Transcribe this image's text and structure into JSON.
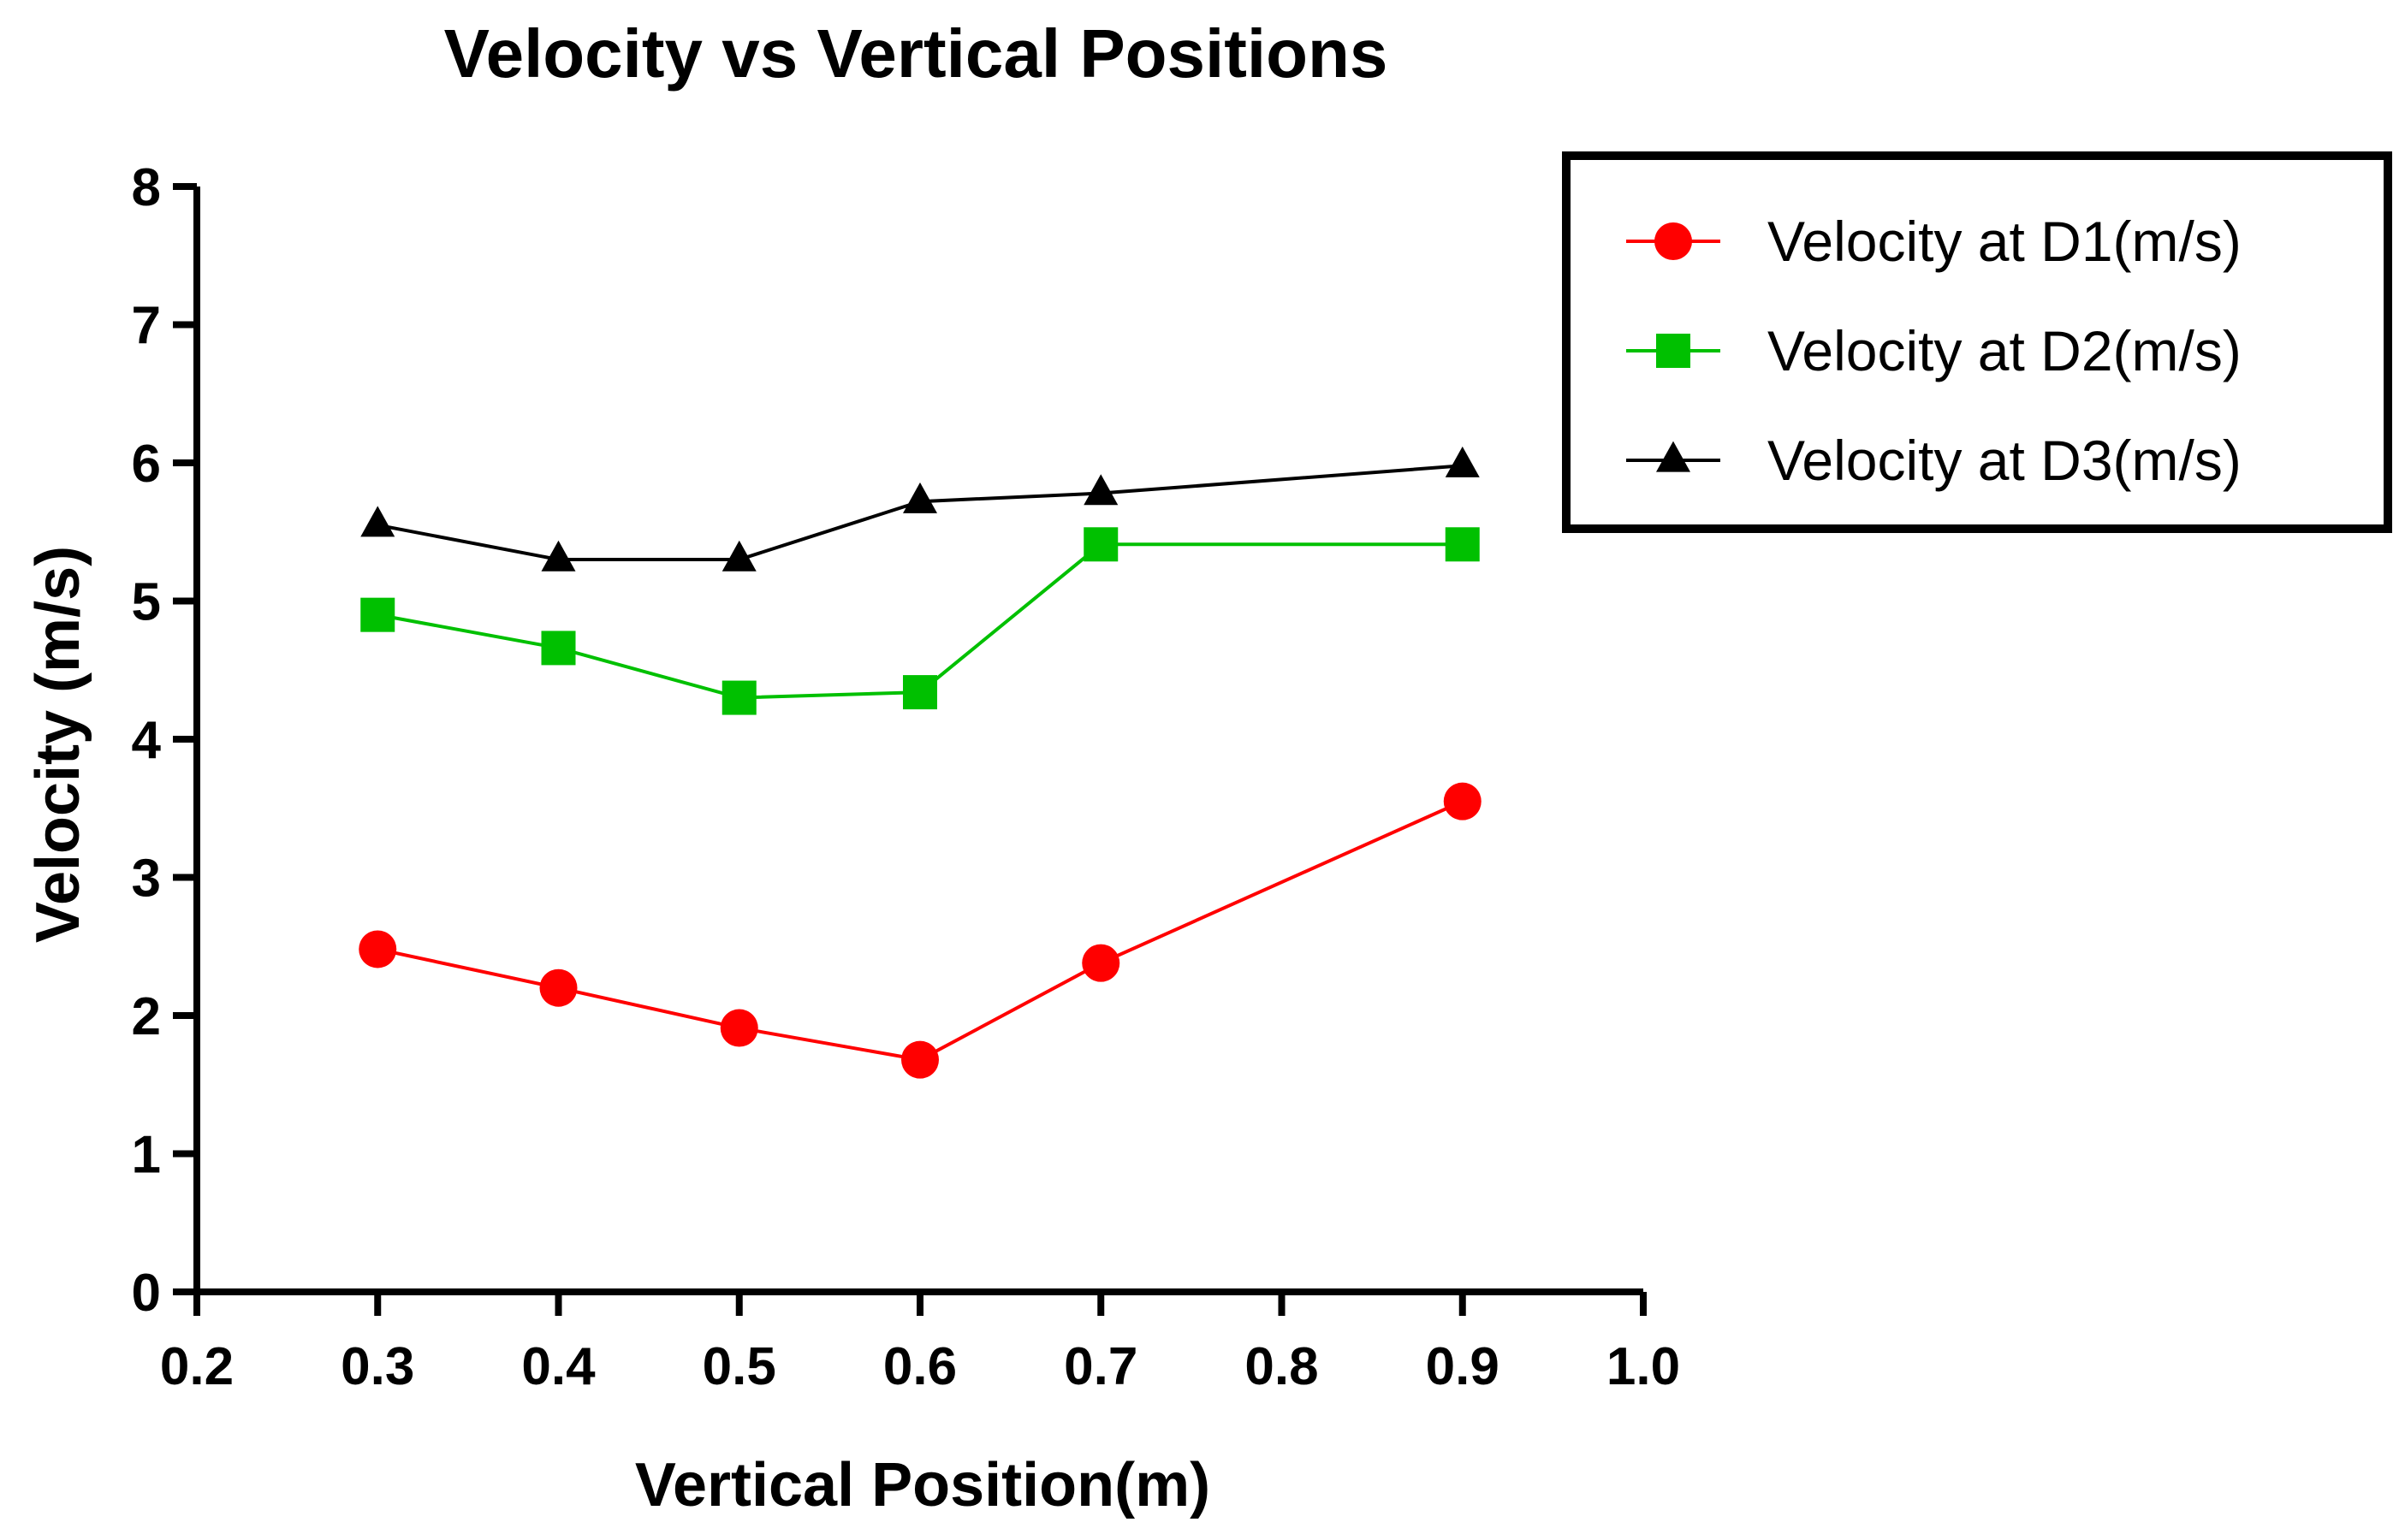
{
  "chart_data": {
    "type": "line",
    "title": "Velocity vs Vertical Positions",
    "xlabel": "Vertical Position(m)",
    "ylabel": "Velocity (m/s)",
    "xlim": [
      0.2,
      1.0
    ],
    "ylim": [
      0,
      8
    ],
    "x_ticks": [
      "0.2",
      "0.3",
      "0.4",
      "0.5",
      "0.6",
      "0.7",
      "0.8",
      "0.9",
      "1.0"
    ],
    "y_ticks": [
      "0",
      "1",
      "2",
      "3",
      "4",
      "5",
      "6",
      "7",
      "8"
    ],
    "grid": false,
    "legend_position": "top-right",
    "x": [
      0.3,
      0.4,
      0.5,
      0.6,
      0.7,
      0.9
    ],
    "series": [
      {
        "name": "Velocity at D1(m/s)",
        "values": [
          2.48,
          2.2,
          1.91,
          1.68,
          2.38,
          3.55
        ],
        "color": "#ff0000",
        "marker": "circle"
      },
      {
        "name": "Velocity at D2(m/s)",
        "values": [
          4.9,
          4.66,
          4.3,
          4.34,
          5.41,
          5.41
        ],
        "color": "#00c000",
        "marker": "square"
      },
      {
        "name": "Velocity at D3(m/s)",
        "values": [
          5.55,
          5.3,
          5.3,
          5.72,
          5.78,
          5.98
        ],
        "color": "#000000",
        "marker": "triangle"
      }
    ]
  }
}
